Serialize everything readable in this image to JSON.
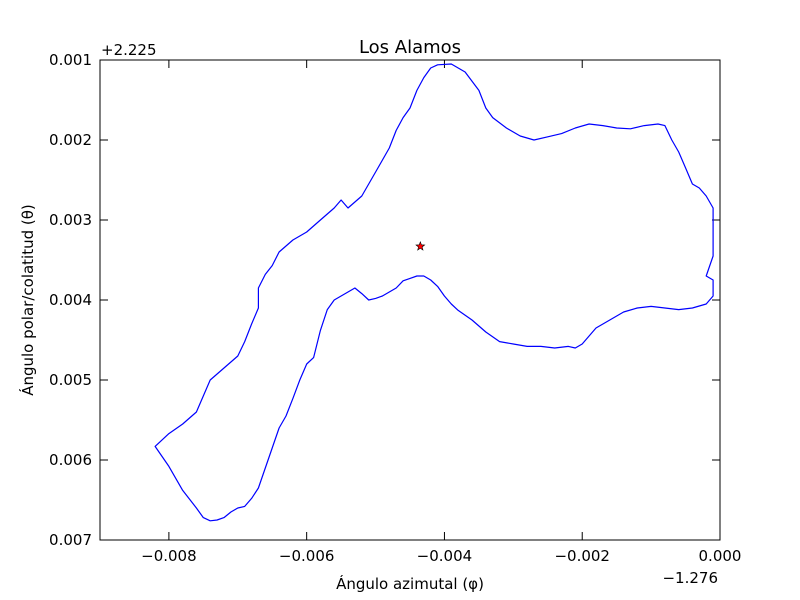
{
  "chart_data": {
    "type": "line",
    "title": "Los Alamos",
    "xlabel": "Ángulo azimutal (φ)",
    "ylabel": "Ángulo polar/colatitud (θ)",
    "x_offset_label": "−1.276",
    "y_offset_label": "+2.225",
    "xlim": [
      -0.009,
      0.0
    ],
    "ylim": [
      0.001,
      0.007
    ],
    "y_inverted": true,
    "x_ticks": [
      "−0.008",
      "−0.006",
      "−0.004",
      "−0.002",
      "0.000"
    ],
    "y_ticks": [
      "0.001",
      "0.002",
      "0.003",
      "0.004",
      "0.005",
      "0.006",
      "0.007"
    ],
    "grid": false,
    "line_color": "#0000ff",
    "marker_color": "#ff0000",
    "series": [
      {
        "x": [
          -0.0082,
          -0.008,
          -0.0078,
          -0.0076,
          -0.0075,
          -0.0074,
          -0.0072,
          -0.007,
          -0.0069,
          -0.0068,
          -0.0067,
          -0.0067,
          -0.0066,
          -0.0065,
          -0.0064,
          -0.0062,
          -0.006,
          -0.0058,
          -0.0056,
          -0.0055,
          -0.0054,
          -0.0052,
          -0.005,
          -0.0048,
          -0.0047,
          -0.0046,
          -0.0045,
          -0.0044,
          -0.0043,
          -0.0042,
          -0.0041,
          -0.0039,
          -0.0037,
          -0.0035,
          -0.0034,
          -0.0033,
          -0.0031,
          -0.0029,
          -0.0027,
          -0.0025,
          -0.0023,
          -0.0021,
          -0.0019,
          -0.0017,
          -0.0015,
          -0.0013,
          -0.0011,
          -0.0009,
          -0.0008,
          -0.0007,
          -0.0006,
          -0.0005,
          -0.0004,
          -0.0003,
          -0.0002,
          -0.0001,
          -0.0001,
          -0.0001,
          -0.0001,
          -0.0002,
          -0.0001,
          -0.0001,
          -0.0002,
          -0.0004,
          -0.0006,
          -0.0008,
          -0.001,
          -0.0012,
          -0.0014,
          -0.0016,
          -0.0018,
          -0.002,
          -0.002,
          -0.0021,
          -0.0022,
          -0.0024,
          -0.0026,
          -0.0028,
          -0.003,
          -0.0032,
          -0.0034,
          -0.0036,
          -0.0038,
          -0.0039,
          -0.004,
          -0.0041,
          -0.0042,
          -0.0043,
          -0.0044,
          -0.0045,
          -0.0046,
          -0.0047,
          -0.0048,
          -0.0049,
          -0.005,
          -0.0051,
          -0.0052,
          -0.0053,
          -0.0054,
          -0.0055,
          -0.0056,
          -0.0057,
          -0.0058,
          -0.0059,
          -0.006,
          -0.0061,
          -0.0062,
          -0.0063,
          -0.0064,
          -0.0065,
          -0.0066,
          -0.0067,
          -0.0068,
          -0.0069,
          -0.007,
          -0.0071,
          -0.0072,
          -0.0073,
          -0.0074,
          -0.0075,
          -0.0076,
          -0.0078,
          -0.008,
          -0.0082
        ],
        "y": [
          0.00583,
          0.00567,
          0.00555,
          0.0054,
          0.0052,
          0.005,
          0.00485,
          0.0047,
          0.00452,
          0.0043,
          0.0041,
          0.00385,
          0.00368,
          0.00357,
          0.0034,
          0.00325,
          0.00315,
          0.003,
          0.00285,
          0.00275,
          0.00285,
          0.0027,
          0.0024,
          0.0021,
          0.00188,
          0.00172,
          0.0016,
          0.00138,
          0.00122,
          0.0011,
          0.00106,
          0.00105,
          0.00115,
          0.00138,
          0.0016,
          0.00172,
          0.00185,
          0.00195,
          0.002,
          0.00196,
          0.00192,
          0.00185,
          0.0018,
          0.00182,
          0.00185,
          0.00186,
          0.00182,
          0.0018,
          0.00182,
          0.002,
          0.00215,
          0.00235,
          0.00255,
          0.0026,
          0.0027,
          0.00285,
          0.003,
          0.0032,
          0.00345,
          0.0037,
          0.00375,
          0.00395,
          0.00405,
          0.0041,
          0.00412,
          0.0041,
          0.00408,
          0.0041,
          0.00415,
          0.00425,
          0.00435,
          0.00455,
          0.00455,
          0.0046,
          0.00458,
          0.0046,
          0.00458,
          0.00458,
          0.00455,
          0.00452,
          0.0044,
          0.00425,
          0.00413,
          0.00405,
          0.00395,
          0.00383,
          0.00375,
          0.0037,
          0.0037,
          0.00373,
          0.00376,
          0.00385,
          0.0039,
          0.00395,
          0.00398,
          0.004,
          0.00392,
          0.00385,
          0.0039,
          0.00395,
          0.004,
          0.00412,
          0.00438,
          0.00472,
          0.0048,
          0.005,
          0.00523,
          0.00545,
          0.0056,
          0.00585,
          0.0061,
          0.00635,
          0.00648,
          0.00658,
          0.0066,
          0.00665,
          0.00672,
          0.00675,
          0.00676,
          0.00672,
          0.0066,
          0.00638,
          0.00608,
          0.00583
        ]
      }
    ],
    "marker": {
      "x": -0.00435,
      "y": 0.00333,
      "shape": "star"
    }
  }
}
